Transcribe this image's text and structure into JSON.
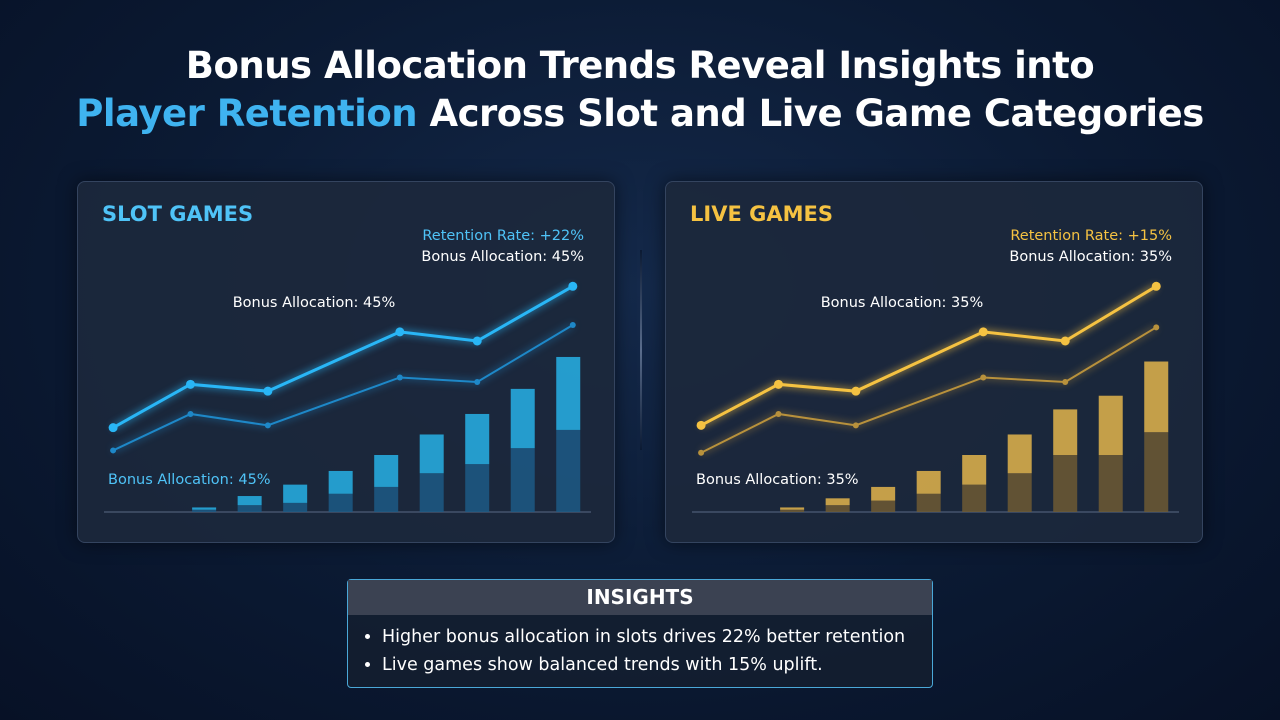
{
  "header": {
    "line1": "Bonus Allocation Trends Reveal Insights into",
    "highlight": "Player Retention",
    "line2_rest": "Across Slot and Live Game Categories"
  },
  "chart_data": [
    {
      "type": "combo",
      "title": "SLOT GAMES",
      "accent": "#4fc3f7",
      "annotations": {
        "retention": "Retention Rate: +22%",
        "allocation": "Bonus Allocation: 45%",
        "middle": "Bonus Allocation: 45%",
        "lower": "Bonus Allocation: 45%"
      },
      "xlim": [
        0,
        10.7
      ],
      "ylim": [
        0,
        100
      ],
      "lines": [
        {
          "color": "#29b6f6",
          "x": [
            0.2,
            1.9,
            3.6,
            6.5,
            8.2,
            10.3
          ],
          "values": [
            37,
            56,
            53,
            79,
            75,
            99
          ]
        },
        {
          "color": "#1e88c8",
          "x": [
            0.2,
            1.9,
            3.6,
            6.5,
            8.2,
            10.3
          ],
          "values": [
            27,
            43,
            38,
            59,
            57,
            82
          ]
        }
      ],
      "bars": {
        "x": [
          2.2,
          3.2,
          4.2,
          5.2,
          6.2,
          7.2,
          8.2,
          9.2,
          10.2
        ],
        "series": [
          {
            "color": "#1c5a86",
            "values": [
              1,
              3,
              4,
              8,
              11,
              17,
              21,
              28,
              36
            ]
          },
          {
            "color": "#27b2e6",
            "values": [
              1,
              4,
              8,
              10,
              14,
              17,
              22,
              26,
              32
            ]
          }
        ]
      }
    },
    {
      "type": "combo",
      "title": "LIVE GAMES",
      "accent": "#f5c242",
      "annotations": {
        "retention": "Retention Rate: +15%",
        "allocation": "Bonus Allocation: 35%",
        "middle": "Bonus Allocation: 35%",
        "lower": "Bonus Allocation: 35%"
      },
      "xlim": [
        0,
        10.7
      ],
      "ylim": [
        0,
        100
      ],
      "lines": [
        {
          "color": "#f5c242",
          "x": [
            0.2,
            1.9,
            3.6,
            6.4,
            8.2,
            10.2
          ],
          "values": [
            38,
            56,
            53,
            79,
            75,
            99
          ]
        },
        {
          "color": "#b8913c",
          "x": [
            0.2,
            1.9,
            3.6,
            6.4,
            8.2,
            10.2
          ],
          "values": [
            26,
            43,
            38,
            59,
            57,
            81
          ]
        }
      ],
      "bars": {
        "x": [
          2.2,
          3.2,
          4.2,
          5.2,
          6.2,
          7.2,
          8.2,
          9.2,
          10.2
        ],
        "series": [
          {
            "color": "#6e5a34",
            "values": [
              1,
              3,
              5,
              8,
              12,
              17,
              25,
              25,
              35
            ]
          },
          {
            "color": "#e3b54c",
            "values": [
              1,
              3,
              6,
              10,
              13,
              17,
              20,
              26,
              31
            ]
          }
        ]
      }
    }
  ],
  "insights": {
    "title": "INSIGHTS",
    "items": [
      "Higher bonus allocation in slots drives 22% better retention",
      "Live games show balanced trends with 15% uplift."
    ]
  }
}
